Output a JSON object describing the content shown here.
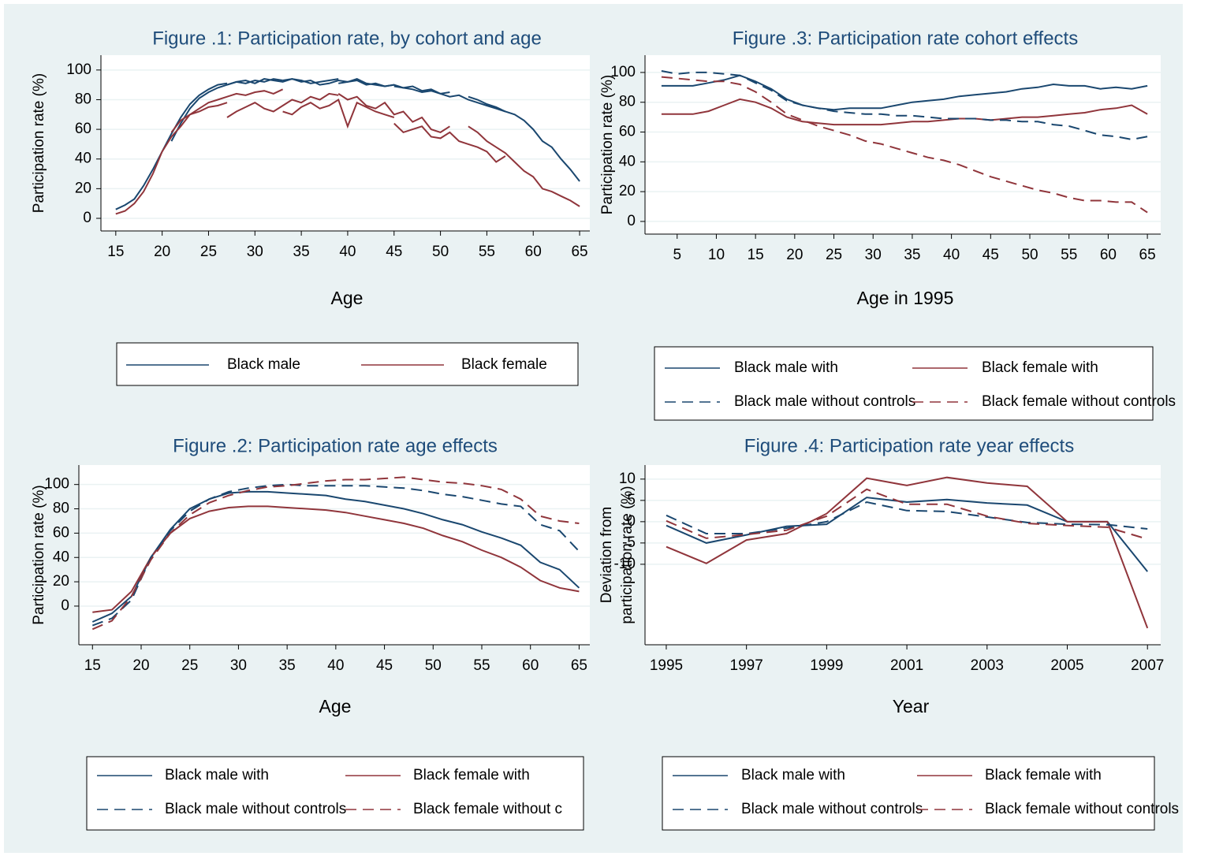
{
  "chart_data": [
    {
      "type": "line",
      "title": "Figure .1: Participation rate, by cohort and age",
      "xlabel": "Age",
      "ylabel": [
        "Participation rate (%)"
      ],
      "xlim": [
        13.4,
        66.1
      ],
      "xticks": [
        15,
        20,
        25,
        30,
        35,
        40,
        45,
        50,
        55,
        60,
        65
      ],
      "ylim": [
        -8.5,
        110
      ],
      "yticks": [
        0,
        20,
        40,
        60,
        80,
        100
      ],
      "grid": true,
      "series": [
        {
          "name": "Black male",
          "color": "#1a476f",
          "line_style": "solid",
          "lines": [
            {
              "x": [
                15,
                16,
                17,
                18,
                19,
                20,
                21,
                22,
                23,
                24,
                25,
                26,
                27
              ],
              "values": [
                6,
                9,
                13,
                22,
                33,
                45,
                57,
                68,
                77,
                83,
                87,
                90,
                91
              ]
            },
            {
              "x": [
                21,
                22,
                23,
                24,
                25,
                26,
                27,
                28,
                29,
                30,
                31,
                32,
                33
              ],
              "values": [
                52,
                64,
                74,
                81,
                85,
                88,
                90,
                92,
                91,
                93,
                92,
                94,
                93
              ]
            },
            {
              "x": [
                27,
                28,
                29,
                30,
                31,
                32,
                33,
                34,
                35,
                36,
                37,
                38,
                39
              ],
              "values": [
                90,
                92,
                93,
                91,
                94,
                93,
                92,
                94,
                93,
                91,
                92,
                93,
                94
              ]
            },
            {
              "x": [
                33,
                34,
                35,
                36,
                37,
                38,
                39,
                40,
                41,
                42,
                43,
                44,
                45
              ],
              "values": [
                93,
                94,
                92,
                93,
                90,
                91,
                93,
                92,
                94,
                91,
                90,
                89,
                90
              ]
            },
            {
              "x": [
                39,
                40,
                41,
                42,
                43,
                44,
                45,
                46,
                47,
                48,
                49,
                50,
                51
              ],
              "values": [
                91,
                92,
                93,
                90,
                91,
                89,
                90,
                88,
                89,
                86,
                87,
                84,
                85
              ]
            },
            {
              "x": [
                45,
                46,
                47,
                48,
                49,
                50,
                51,
                52,
                53,
                54,
                55,
                56,
                57
              ],
              "values": [
                89,
                88,
                87,
                85,
                86,
                84,
                82,
                83,
                80,
                78,
                76,
                74,
                72
              ]
            },
            {
              "x": [
                53,
                54,
                55,
                56,
                57,
                58,
                59,
                60,
                61,
                62,
                63,
                64,
                65
              ],
              "values": [
                82,
                80,
                77,
                75,
                72,
                70,
                66,
                60,
                52,
                48,
                40,
                33,
                25
              ]
            }
          ]
        },
        {
          "name": "Black female",
          "color": "#90353b",
          "line_style": "solid",
          "lines": [
            {
              "x": [
                15,
                16,
                17,
                18,
                19,
                20,
                21,
                22,
                23,
                24,
                25,
                26,
                27
              ],
              "values": [
                3,
                5,
                10,
                18,
                30,
                45,
                55,
                62,
                70,
                72,
                75,
                76,
                78
              ]
            },
            {
              "x": [
                21,
                22,
                23,
                24,
                25,
                26,
                27,
                28,
                29,
                30,
                31,
                32,
                33
              ],
              "values": [
                58,
                66,
                70,
                74,
                78,
                80,
                82,
                84,
                83,
                85,
                86,
                84,
                87
              ]
            },
            {
              "x": [
                27,
                28,
                29,
                30,
                31,
                32,
                33,
                34,
                35,
                36,
                37,
                38,
                39
              ],
              "values": [
                68,
                72,
                75,
                78,
                74,
                72,
                76,
                80,
                78,
                82,
                80,
                84,
                83
              ]
            },
            {
              "x": [
                33,
                34,
                35,
                36,
                37,
                38,
                39,
                40,
                41,
                42,
                43,
                44,
                45
              ],
              "values": [
                72,
                70,
                75,
                78,
                74,
                76,
                80,
                62,
                78,
                75,
                72,
                70,
                68
              ]
            },
            {
              "x": [
                39,
                40,
                41,
                42,
                43,
                44,
                45,
                46,
                47,
                48,
                49,
                50,
                51
              ],
              "values": [
                84,
                80,
                82,
                76,
                74,
                78,
                70,
                72,
                65,
                68,
                60,
                58,
                62
              ]
            },
            {
              "x": [
                45,
                46,
                47,
                48,
                49,
                50,
                51,
                52,
                53,
                54,
                55,
                56,
                57
              ],
              "values": [
                64,
                58,
                60,
                62,
                55,
                54,
                58,
                52,
                50,
                48,
                45,
                38,
                42
              ]
            },
            {
              "x": [
                53,
                54,
                55,
                56,
                57,
                58,
                59,
                60,
                61,
                62,
                63,
                64,
                65
              ],
              "values": [
                62,
                58,
                52,
                48,
                44,
                38,
                32,
                28,
                20,
                18,
                15,
                12,
                8
              ]
            }
          ]
        }
      ]
    },
    {
      "type": "line",
      "title": "Figure .3: Participation rate cohort effects",
      "xlabel": "Age in 1995",
      "ylabel": [
        "Participation rate (%)"
      ],
      "xlim": [
        0.9,
        66.7
      ],
      "xticks": [
        5,
        10,
        15,
        20,
        25,
        30,
        35,
        40,
        45,
        50,
        55,
        60,
        65
      ],
      "ylim": [
        -8.5,
        111.6
      ],
      "yticks": [
        0,
        20,
        40,
        60,
        80,
        100
      ],
      "grid": true,
      "x": [
        3,
        5,
        7,
        9,
        11,
        13,
        15,
        17,
        19,
        21,
        23,
        25,
        27,
        29,
        31,
        33,
        35,
        37,
        39,
        41,
        43,
        45,
        47,
        49,
        51,
        53,
        55,
        57,
        59,
        61,
        63,
        65
      ],
      "series": [
        {
          "name": "Black male with",
          "color": "#1a476f",
          "line_style": "solid",
          "values": [
            91,
            91,
            91,
            93,
            95,
            98,
            94,
            89,
            82,
            78,
            76,
            75,
            76,
            76,
            76,
            78,
            80,
            81,
            82,
            84,
            85,
            86,
            87,
            89,
            90,
            92,
            91,
            91,
            89,
            90,
            89,
            91
          ]
        },
        {
          "name": "Black female with",
          "color": "#90353b",
          "line_style": "solid",
          "values": [
            72,
            72,
            72,
            74,
            78,
            82,
            80,
            76,
            70,
            67,
            66,
            65,
            65,
            65,
            65,
            66,
            67,
            67,
            68,
            69,
            69,
            68,
            69,
            70,
            70,
            71,
            72,
            73,
            75,
            76,
            78,
            72
          ]
        },
        {
          "name": "Black male without controls",
          "color": "#1a476f",
          "line_style": "dashed",
          "values": [
            101,
            99,
            100,
            100,
            99,
            98,
            93,
            88,
            81,
            78,
            76,
            74,
            73,
            72,
            72,
            71,
            71,
            70,
            69,
            69,
            69,
            68,
            68,
            67,
            67,
            65,
            64,
            61,
            58,
            57,
            55,
            57
          ]
        },
        {
          "name": "Black female without controls",
          "color": "#90353b",
          "line_style": "dashed",
          "values": [
            97,
            96,
            95,
            94,
            94,
            92,
            87,
            80,
            72,
            68,
            64,
            61,
            58,
            54,
            52,
            49,
            46,
            43,
            41,
            38,
            34,
            30,
            27,
            24,
            21,
            19,
            16,
            14,
            14,
            13,
            13,
            6
          ]
        }
      ]
    },
    {
      "type": "line",
      "title": "Figure .2: Participation rate age effects",
      "xlabel": "Age",
      "ylabel": [
        "Participation rate (%)"
      ],
      "xlim": [
        13.6,
        66.1
      ],
      "xticks": [
        15,
        20,
        25,
        30,
        35,
        40,
        45,
        50,
        55,
        60,
        65
      ],
      "ylim": [
        -31.8,
        116
      ],
      "yticks": [
        0,
        20,
        40,
        60,
        80,
        100
      ],
      "grid": true,
      "x": [
        15,
        17,
        19,
        21,
        23,
        25,
        27,
        29,
        31,
        33,
        35,
        37,
        39,
        41,
        43,
        45,
        47,
        49,
        51,
        53,
        55,
        57,
        59,
        61,
        63,
        65
      ],
      "series": [
        {
          "name": "Black male with",
          "color": "#1a476f",
          "line_style": "solid",
          "values": [
            -13,
            -6,
            8,
            40,
            63,
            80,
            88,
            93,
            94,
            94,
            93,
            92,
            91,
            88,
            86,
            83,
            80,
            76,
            71,
            67,
            61,
            56,
            50,
            36,
            30,
            15
          ]
        },
        {
          "name": "Black female with",
          "color": "#90353b",
          "line_style": "solid",
          "values": [
            -5,
            -3,
            12,
            40,
            60,
            72,
            78,
            81,
            82,
            82,
            81,
            80,
            79,
            77,
            74,
            71,
            68,
            64,
            58,
            53,
            46,
            40,
            32,
            21,
            15,
            12
          ]
        },
        {
          "name": "Black male without controls",
          "color": "#1a476f",
          "line_style": "dashed",
          "values": [
            -16,
            -10,
            5,
            40,
            62,
            78,
            88,
            94,
            97,
            99,
            100,
            99,
            99,
            99,
            99,
            98,
            97,
            95,
            92,
            90,
            87,
            84,
            82,
            67,
            62,
            45
          ]
        },
        {
          "name": "Black female without c",
          "color": "#90353b",
          "line_style": "dashed",
          "values": [
            -19,
            -12,
            8,
            38,
            60,
            75,
            85,
            91,
            95,
            98,
            99,
            101,
            103,
            104,
            104,
            105,
            106,
            104,
            102,
            101,
            99,
            96,
            88,
            74,
            70,
            68
          ]
        }
      ]
    },
    {
      "type": "line",
      "title": "Figure .4: Participation rate year effects",
      "xlabel": "Year",
      "ylabel": [
        "Deviation from",
        "participation rate (%)"
      ],
      "xlim": [
        1994.47,
        2007.33
      ],
      "xticks": [
        1995,
        1997,
        1999,
        2001,
        2003,
        2005,
        2007
      ],
      "ylim": [
        -28.9,
        13.3
      ],
      "yticks": [
        -10,
        -5,
        0,
        5,
        10
      ],
      "grid": true,
      "x": [
        1995,
        1996,
        1997,
        1998,
        1999,
        2000,
        2001,
        2002,
        2003,
        2004,
        2005,
        2006,
        2007
      ],
      "series": [
        {
          "name": "Black male with",
          "color": "#1a476f",
          "line_style": "solid",
          "values": [
            -0.9,
            -5,
            -3.1,
            -1.1,
            -0.6,
            5.7,
            4.6,
            5.2,
            4.4,
            3.9,
            0,
            0,
            -11.7
          ]
        },
        {
          "name": "Black female with",
          "color": "#90353b",
          "line_style": "solid",
          "values": [
            -5.9,
            -9.8,
            -4.3,
            -2.8,
            1.9,
            10.2,
            8.5,
            10.4,
            9.1,
            8.3,
            0,
            0,
            -25
          ]
        },
        {
          "name": "Black male without controls",
          "color": "#1a476f",
          "line_style": "dashed",
          "values": [
            1.5,
            -2.8,
            -2.8,
            -1.5,
            0,
            4.6,
            2.6,
            2.4,
            1.1,
            -0.2,
            -0.6,
            -0.7,
            -1.7
          ]
        },
        {
          "name": "Black female without controls",
          "color": "#90353b",
          "line_style": "dashed",
          "values": [
            0.2,
            -3.9,
            -3,
            -2,
            1.3,
            7.6,
            4.1,
            4.1,
            1.3,
            -0.4,
            -0.9,
            -1.3,
            -4.1
          ]
        }
      ]
    }
  ]
}
